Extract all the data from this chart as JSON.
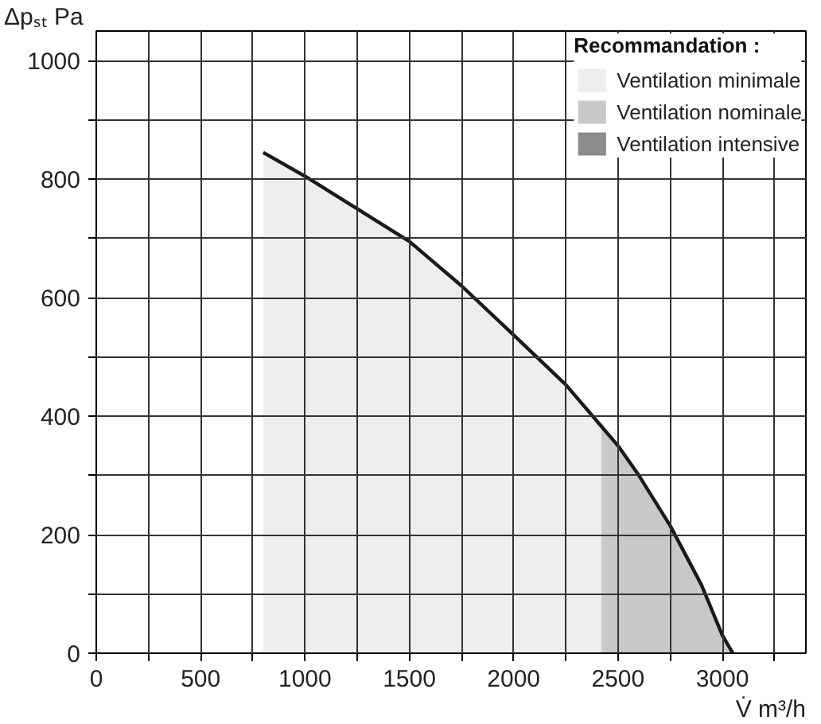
{
  "chart_data": {
    "type": "area",
    "xlabel": "V̇ m³/h",
    "ylabel": "Δpₛₜ Pa",
    "legend_title": "Recommandation :",
    "xlim": [
      0,
      3400
    ],
    "ylim": [
      0,
      1050
    ],
    "xticks": [
      0,
      {
        "value": 250,
        "label": null
      },
      500,
      {
        "value": 750,
        "label": null
      },
      1000,
      {
        "value": 1250,
        "label": null
      },
      1500,
      {
        "value": 1750,
        "label": null
      },
      2000,
      {
        "value": 2250,
        "label": null
      },
      2500,
      {
        "value": 2750,
        "label": null
      },
      3000,
      {
        "value": 3250,
        "label": null
      }
    ],
    "yticks": [
      0,
      {
        "value": 100,
        "label": null
      },
      200,
      {
        "value": 300,
        "label": null
      },
      400,
      {
        "value": 500,
        "label": null
      },
      600,
      {
        "value": 700,
        "label": null
      },
      800,
      {
        "value": 900,
        "label": null
      },
      1000
    ],
    "grid": true,
    "legend": "top right",
    "series": [
      {
        "name": "Ventilation minimale",
        "color": "#eceef0",
        "x": [
          800,
          1000,
          1250,
          1500,
          1750,
          2000,
          2250,
          2420
        ],
        "values": [
          845,
          805,
          750,
          695,
          620,
          537,
          453,
          390
        ]
      },
      {
        "name": "Ventilation nominale",
        "color": "#c8c9ca",
        "x": [
          2420,
          2500,
          2600,
          2750,
          2900,
          3000,
          3050
        ],
        "values": [
          390,
          350,
          300,
          215,
          115,
          30,
          0
        ]
      },
      {
        "name": "Ventilation intensive",
        "color": "#8c8c8c"
      },
      {
        "type": "line",
        "color": "#1a1a1a",
        "x": [
          800,
          1000,
          1250,
          1500,
          1750,
          2000,
          2250,
          2500,
          2600,
          2750,
          2900,
          3000,
          3050
        ],
        "values": [
          845,
          805,
          750,
          695,
          620,
          537,
          453,
          350,
          300,
          215,
          115,
          30,
          0
        ]
      }
    ]
  }
}
